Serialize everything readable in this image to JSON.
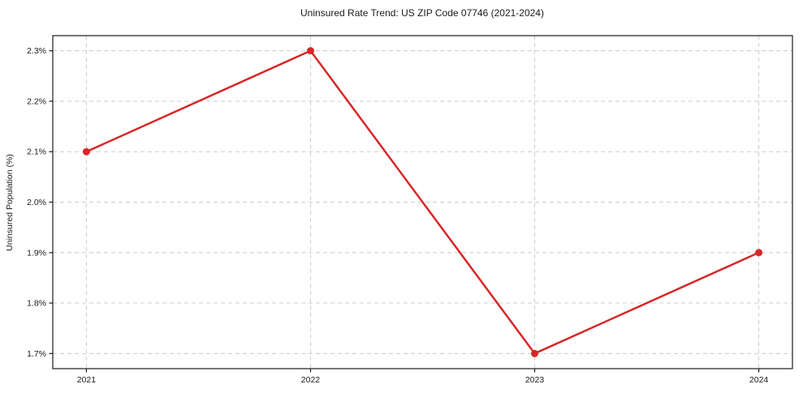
{
  "page": {
    "background": "#ffffff"
  },
  "chart_data": {
    "type": "line",
    "title": "Uninsured Rate Trend: US ZIP Code 07746 (2021-2024)",
    "xlabel": "",
    "ylabel": "Uninsured Population (%)",
    "categories": [
      "2021",
      "2022",
      "2023",
      "2024"
    ],
    "x": [
      2021,
      2022,
      2023,
      2024
    ],
    "series": [
      {
        "name": "Uninsured rate",
        "values": [
          2.1,
          2.3,
          1.7,
          1.9
        ],
        "color": "#d62728",
        "marker": "circle",
        "line_width": 2.5,
        "marker_radius": 4.5
      }
    ],
    "xticks": {
      "values": [
        2021,
        2022,
        2023,
        2024
      ],
      "labels": [
        "2021",
        "2022",
        "2023",
        "2024"
      ]
    },
    "yticks": {
      "values": [
        1.7,
        1.8,
        1.9,
        2.0,
        2.1,
        2.2,
        2.3
      ],
      "labels": [
        "1.7%",
        "1.8%",
        "1.9%",
        "2.0%",
        "2.1%",
        "2.2%",
        "2.3%"
      ]
    },
    "xlim": [
      2020.85,
      2024.15
    ],
    "ylim": [
      1.67,
      2.33
    ],
    "grid": "both",
    "grid_style": "dashed",
    "grid_color": "#cccccc",
    "axis_color": "#1a1a1a",
    "text_color": "#1a1a1a",
    "legend_position": "none"
  }
}
